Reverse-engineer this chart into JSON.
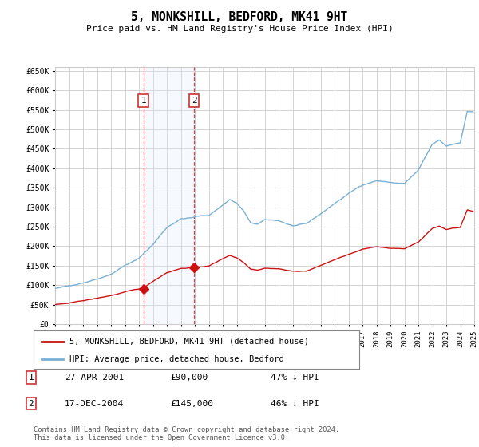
{
  "title": "5, MONKSHILL, BEDFORD, MK41 9HT",
  "subtitle": "Price paid vs. HM Land Registry's House Price Index (HPI)",
  "ylim": [
    0,
    660000
  ],
  "yticks": [
    0,
    50000,
    100000,
    150000,
    200000,
    250000,
    300000,
    350000,
    400000,
    450000,
    500000,
    550000,
    600000,
    650000
  ],
  "background_color": "#ffffff",
  "grid_color": "#cccccc",
  "sale1_date": 2001.32,
  "sale1_price": 90000,
  "sale1_label": "1",
  "sale1_date_str": "27-APR-2001",
  "sale1_price_str": "£90,000",
  "sale1_pct": "47% ↓ HPI",
  "sale2_date": 2004.96,
  "sale2_price": 145000,
  "sale2_label": "2",
  "sale2_date_str": "17-DEC-2004",
  "sale2_price_str": "£145,000",
  "sale2_pct": "46% ↓ HPI",
  "hpi_color": "#7ab0d4",
  "price_color": "#cc1111",
  "shade_color": "#ddeeff",
  "legend_label_price": "5, MONKSHILL, BEDFORD, MK41 9HT (detached house)",
  "legend_label_hpi": "HPI: Average price, detached house, Bedford",
  "footer": "Contains HM Land Registry data © Crown copyright and database right 2024.\nThis data is licensed under the Open Government Licence v3.0."
}
